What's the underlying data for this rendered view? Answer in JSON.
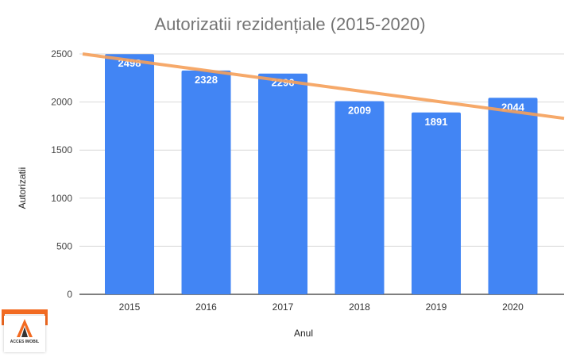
{
  "chart_data": {
    "type": "bar",
    "title": "Autorizatii rezidențiale (2015-2020)",
    "xlabel": "Anul",
    "ylabel": "Autorizatii",
    "categories": [
      "2015",
      "2016",
      "2017",
      "2018",
      "2019",
      "2020"
    ],
    "values": [
      2498,
      2328,
      2296,
      2009,
      1891,
      2044
    ],
    "series": [
      {
        "name": "Autorizatii",
        "values": [
          2498,
          2328,
          2296,
          2009,
          1891,
          2044
        ],
        "color": "#4285f4"
      }
    ],
    "trendline": {
      "type": "linear",
      "color": "#f6a05a",
      "start_value": 2500,
      "end_value": 1830
    },
    "ylim": [
      0,
      2500
    ],
    "yticks": [
      0,
      500,
      1000,
      1500,
      2000,
      2500
    ],
    "grid": true,
    "data_labels": true,
    "legend": "none"
  },
  "logo": {
    "text": "ACCES IMOBIL",
    "accent": "#f26a21"
  }
}
